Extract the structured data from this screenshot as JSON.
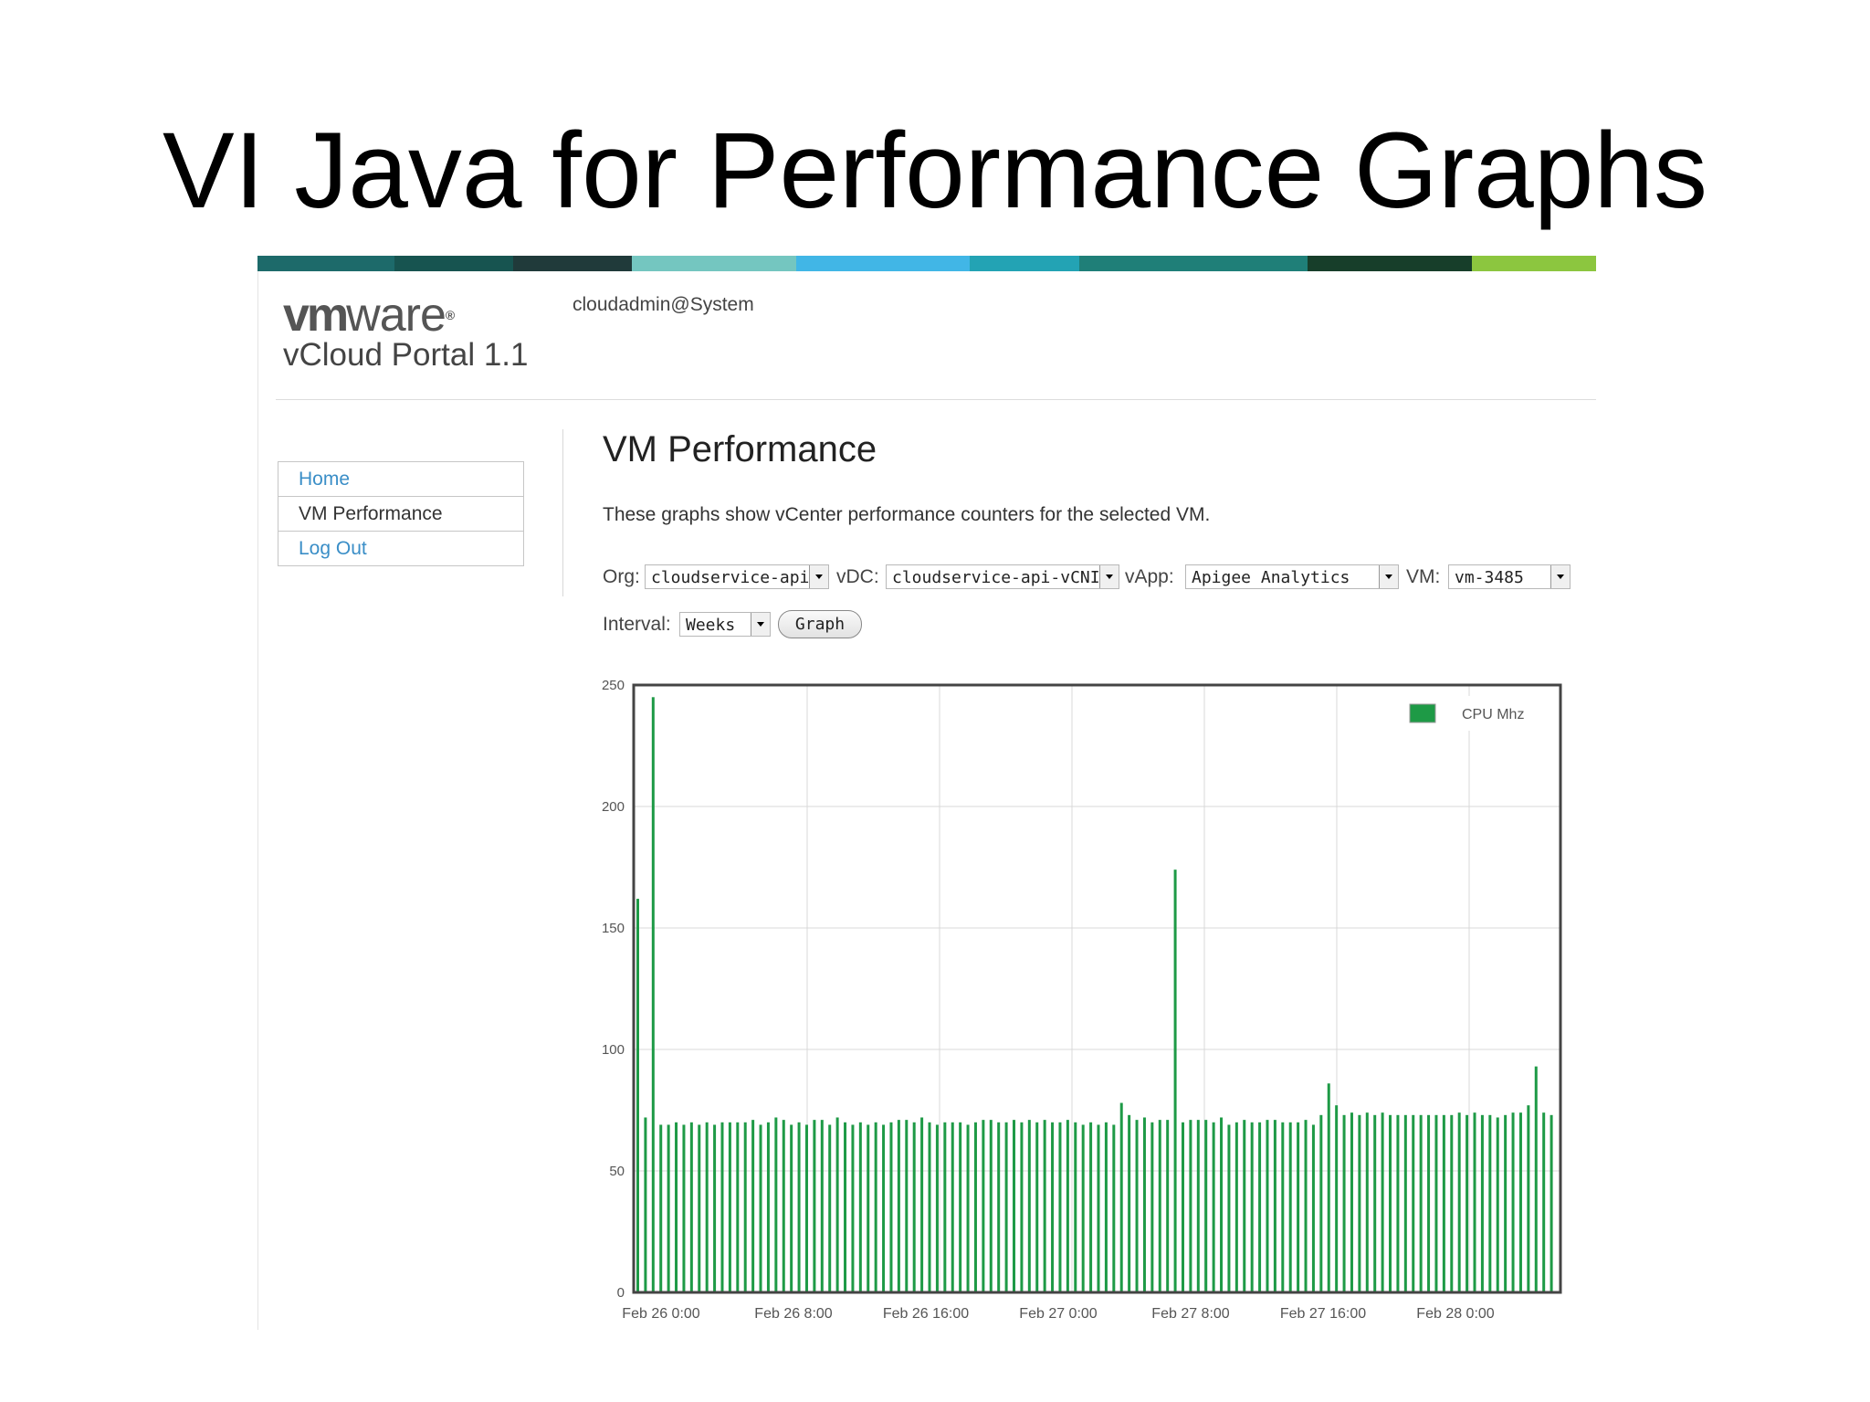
{
  "slide": {
    "title": "VI Java for Performance Graphs"
  },
  "banner": {
    "colors": [
      "#1d6a6a",
      "#175450",
      "#203a3a",
      "#74c6c0",
      "#41b6e6",
      "#23a3b4",
      "#1f7f78",
      "#173e2a",
      "#8cc63f"
    ]
  },
  "header": {
    "logo_vm": "vm",
    "logo_ware": "ware",
    "logo_reg": "®",
    "product": "vCloud Portal 1.1",
    "user": "cloudadmin@System"
  },
  "nav": {
    "items": [
      {
        "label": "Home",
        "kind": "link"
      },
      {
        "label": "VM Performance",
        "kind": "current"
      },
      {
        "label": "Log Out",
        "kind": "link"
      }
    ]
  },
  "page": {
    "title": "VM Performance",
    "description": "These graphs show vCenter performance counters for the selected VM."
  },
  "filters": {
    "org_label": "Org:",
    "org_value": "cloudservice-api",
    "vdc_label": "vDC:",
    "vdc_value": "cloudservice-api-vCNI",
    "vapp_label": "vApp:",
    "vapp_value": "Apigee Analytics",
    "vm_label": "VM:",
    "vm_value": "vm-3485",
    "interval_label": "Interval:",
    "interval_value": "Weeks",
    "graph_button": "Graph"
  },
  "chart_data": {
    "type": "bar",
    "title": "",
    "xlabel": "",
    "ylabel": "",
    "ylim": [
      0,
      250
    ],
    "yticks": [
      0,
      50,
      100,
      150,
      200,
      250
    ],
    "xticks": [
      "Feb 26 0:00",
      "Feb 26 8:00",
      "Feb 26 16:00",
      "Feb 27 0:00",
      "Feb 27 8:00",
      "Feb 27 16:00",
      "Feb 28 0:00"
    ],
    "grid": true,
    "legend_position": "top-right",
    "color": "#1e9a46",
    "series": [
      {
        "name": "CPU Mhz",
        "values": [
          162,
          72,
          245,
          69,
          69,
          70,
          69,
          70,
          69,
          70,
          69,
          70,
          70,
          70,
          70,
          71,
          69,
          70,
          72,
          71,
          69,
          70,
          69,
          71,
          71,
          69,
          72,
          70,
          69,
          70,
          69,
          70,
          69,
          70,
          71,
          71,
          70,
          72,
          70,
          69,
          70,
          70,
          70,
          69,
          70,
          71,
          71,
          70,
          70,
          71,
          70,
          71,
          70,
          71,
          70,
          70,
          71,
          70,
          69,
          70,
          69,
          70,
          69,
          78,
          73,
          71,
          72,
          70,
          71,
          71,
          174,
          70,
          71,
          71,
          71,
          70,
          72,
          69,
          70,
          71,
          70,
          70,
          71,
          71,
          70,
          70,
          70,
          71,
          69,
          73,
          86,
          77,
          73,
          74,
          73,
          74,
          73,
          74,
          73,
          73,
          73,
          73,
          73,
          73,
          73,
          73,
          73,
          74,
          73,
          74,
          73,
          73,
          72,
          73,
          74,
          74,
          77,
          93,
          74,
          73
        ]
      }
    ]
  }
}
